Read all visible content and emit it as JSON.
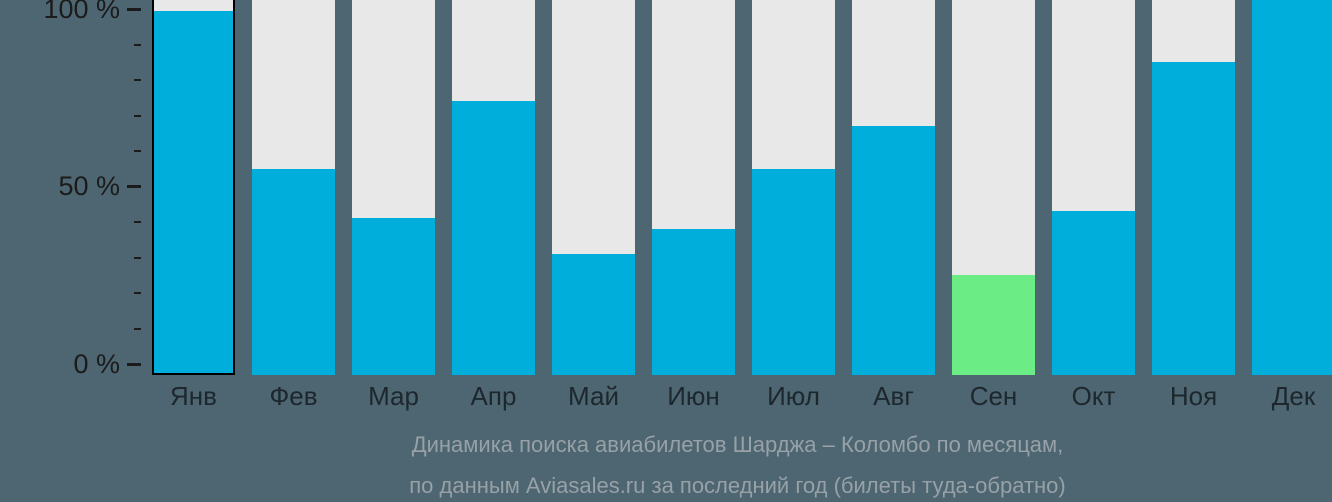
{
  "chart_data": {
    "type": "bar",
    "title": "Динамика поиска авиабилетов Шарджа – Коломбо по месяцам, по данным Aviasales.ru за последний год (билеты туда-обратно)",
    "categories": [
      "Янв",
      "Фев",
      "Мар",
      "Апр",
      "Май",
      "Июн",
      "Июл",
      "Авг",
      "Сен",
      "Окт",
      "Ноя",
      "Дек"
    ],
    "values": [
      99,
      55,
      41,
      74,
      31,
      38,
      55,
      67,
      25,
      43,
      85,
      100
    ],
    "unit": "%",
    "xlabel": "",
    "ylabel": "",
    "ylim": [
      0,
      100
    ],
    "grid": false,
    "legend_position": "none",
    "yticks": [
      {
        "pct": 100,
        "label": "100 %"
      },
      {
        "pct": 50,
        "label": "50 %"
      },
      {
        "pct": 0,
        "label": "0 %"
      }
    ],
    "minor_ticks_pct": [
      90,
      80,
      70,
      60,
      40,
      30,
      20,
      10
    ],
    "highlighted_category": "Янв",
    "special_color_category": "Сен"
  },
  "caption": {
    "line1": "Динамика поиска авиабилетов Шарджа – Коломбо по месяцам,",
    "line2": "по данным Aviasales.ru за последний год (билеты туда-обратно)"
  },
  "colors": {
    "background": "#4D6671",
    "bar": "#00AEDB",
    "bar_min": "#6BEC85",
    "bar_bg": "#E8E8E8",
    "axis_text": "#1B1B1B",
    "label_text": "#1D272E",
    "caption_text": "#97A1A7",
    "outline": "#000000"
  }
}
